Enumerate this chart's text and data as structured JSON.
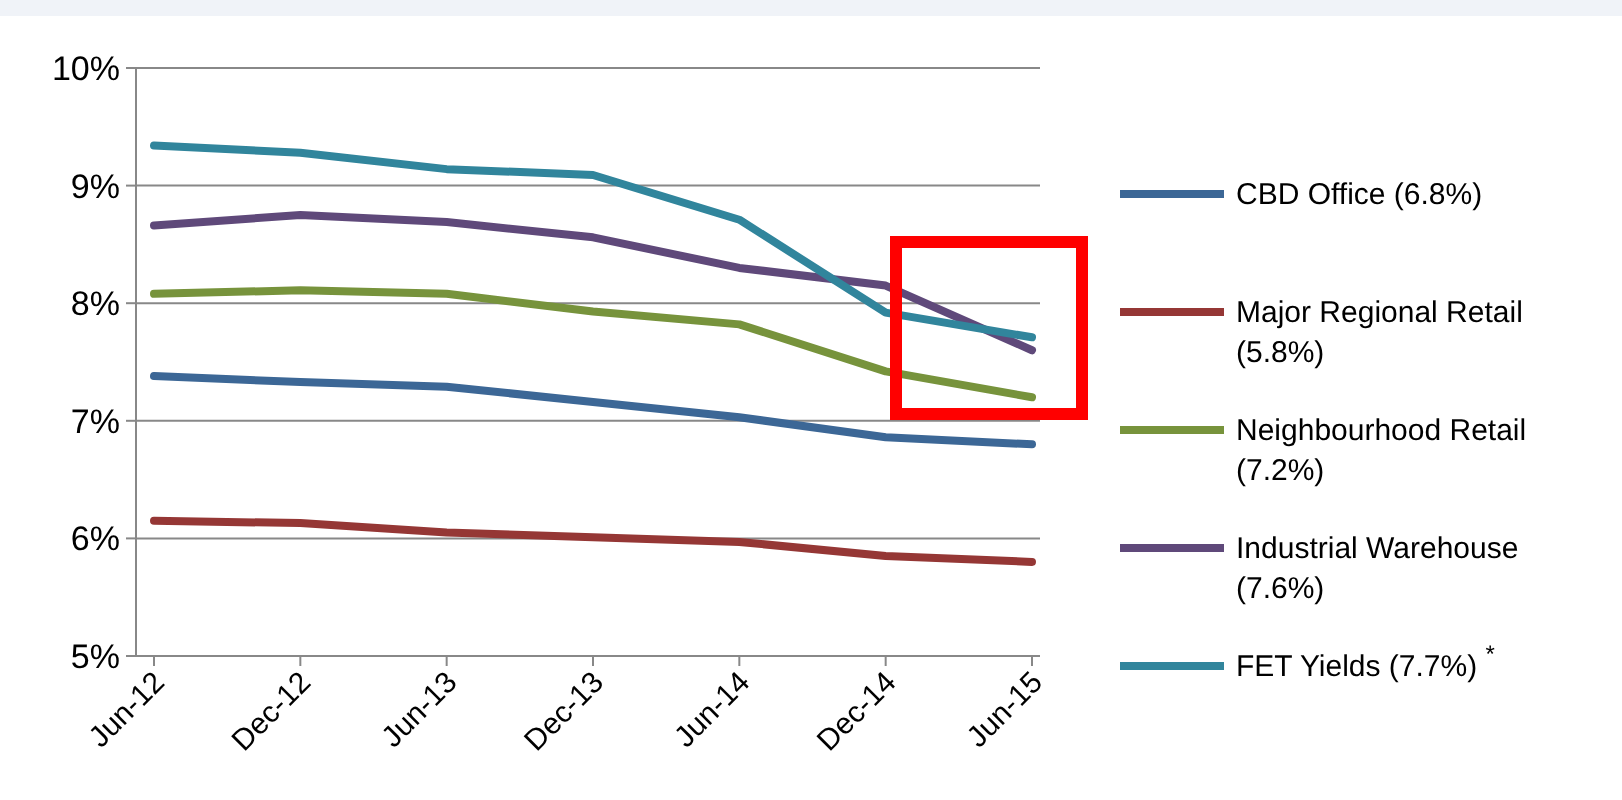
{
  "chart_data": {
    "type": "line",
    "categories": [
      "Jun-12",
      "Dec-12",
      "Jun-13",
      "Dec-13",
      "Jun-14",
      "Dec-14",
      "Jun-15"
    ],
    "series": [
      {
        "name": "CBD Office (6.8%)",
        "color": "#3c6796",
        "values": [
          7.38,
          7.33,
          7.29,
          7.16,
          7.03,
          6.86,
          6.8
        ]
      },
      {
        "name": "Major Regional Retail (5.8%)",
        "color": "#953735",
        "values": [
          6.15,
          6.13,
          6.05,
          6.01,
          5.97,
          5.85,
          5.8
        ]
      },
      {
        "name": "Neighbourhood Retail (7.2%)",
        "color": "#77933c",
        "values": [
          8.08,
          8.11,
          8.08,
          7.93,
          7.82,
          7.42,
          7.2
        ]
      },
      {
        "name": "Industrial Warehouse (7.6%)",
        "color": "#5f497a",
        "values": [
          8.66,
          8.75,
          8.69,
          8.56,
          8.3,
          8.15,
          7.6
        ]
      },
      {
        "name": "FET Yields (7.7%) $^{*}$",
        "color": "#31859c",
        "values": [
          9.34,
          9.28,
          9.14,
          9.09,
          8.71,
          7.92,
          7.71
        ]
      }
    ],
    "ylim": [
      5,
      10
    ],
    "yticks": [
      {
        "value": 5,
        "label": "5%"
      },
      {
        "value": 6,
        "label": "6%"
      },
      {
        "value": 7,
        "label": "7%"
      },
      {
        "value": 8,
        "label": "8%"
      },
      {
        "value": 9,
        "label": "9%"
      },
      {
        "value": 10,
        "label": "10%"
      }
    ],
    "grid": "y",
    "legend": "right",
    "marker": "none"
  }
}
